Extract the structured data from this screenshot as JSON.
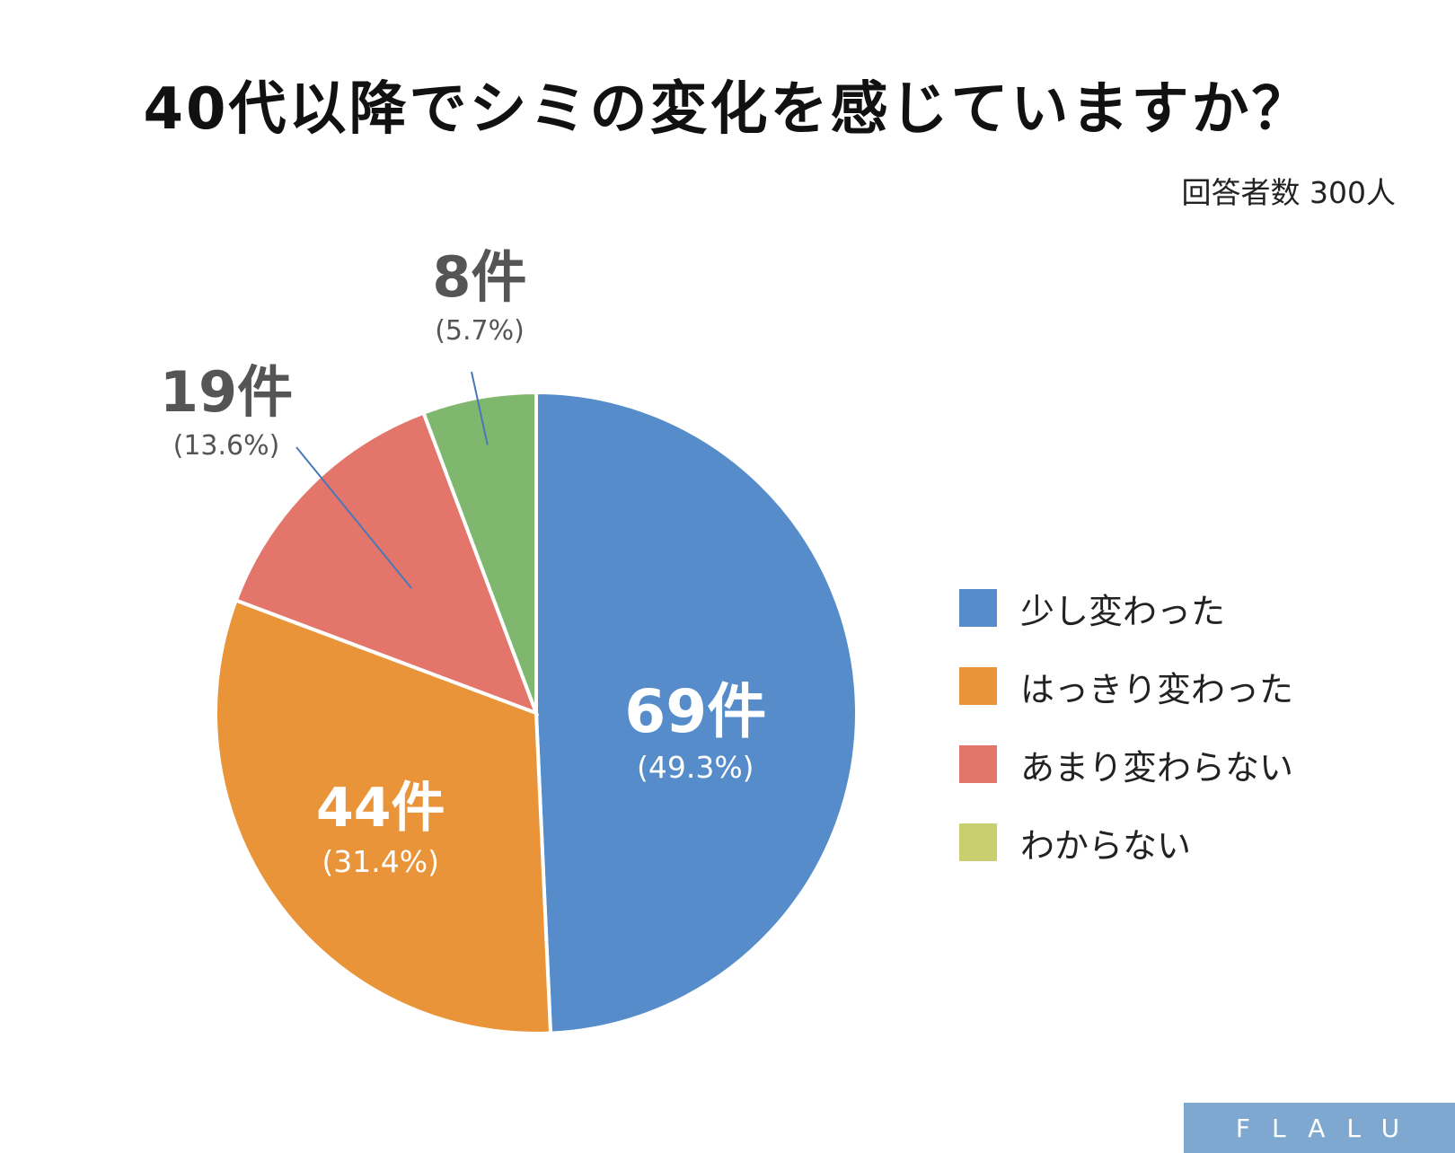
{
  "chart_data": {
    "type": "pie",
    "title": "40代以降でシミの変化を感じていますか？",
    "subtitle": "回答者数 300人",
    "slices": [
      {
        "label": "少し変わった",
        "value": 69,
        "value_label": "69件",
        "percent_label": "(49.3%)",
        "color": "#558cc9"
      },
      {
        "label": "はっきり変わった",
        "value": 44,
        "value_label": "44件",
        "percent_label": "(31.4%)",
        "color": "#e99438"
      },
      {
        "label": "あまり変わらない",
        "value": 19,
        "value_label": "19件",
        "percent_label": "(13.6%)",
        "color": "#e3756b"
      },
      {
        "label": "わからない",
        "value": 8,
        "value_label": "8件",
        "percent_label": "(5.7%)",
        "color": "#80b76e",
        "legend_color": "#c9cf6e"
      }
    ],
    "legend_position": "right"
  },
  "brand": {
    "logo_text": "FLALU",
    "color": "#7fa8d0"
  }
}
